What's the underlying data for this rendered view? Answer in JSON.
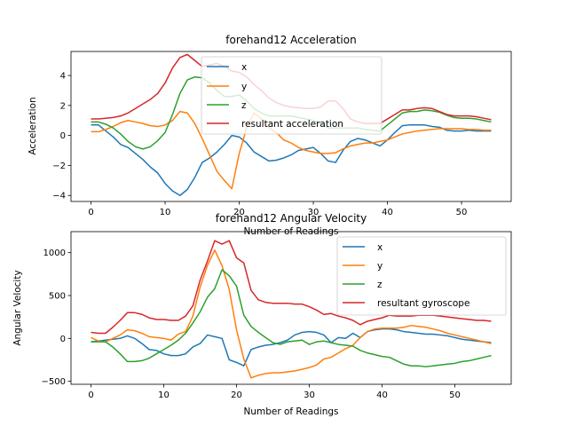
{
  "chart_data": [
    {
      "type": "line",
      "title": "forehand12 Acceleration",
      "xlabel": "Number of Readings",
      "ylabel": "Acceleration",
      "xlim": [
        -2.7,
        56.7
      ],
      "ylim": [
        -4.4,
        5.6
      ],
      "xticks": [
        0,
        10,
        20,
        30,
        40,
        50
      ],
      "yticks": [
        -4,
        -2,
        0,
        2,
        4
      ],
      "legend": "top-center",
      "grid": false,
      "x": [
        0,
        1,
        2,
        3,
        4,
        5,
        6,
        7,
        8,
        9,
        10,
        11,
        12,
        13,
        14,
        15,
        16,
        17,
        18,
        19,
        20,
        21,
        22,
        23,
        24,
        25,
        26,
        27,
        28,
        29,
        30,
        31,
        32,
        33,
        34,
        35,
        36,
        37,
        38,
        39,
        40,
        41,
        42,
        43,
        44,
        45,
        46,
        47,
        48,
        49,
        50,
        51,
        52,
        53,
        54
      ],
      "series": [
        {
          "name": "x",
          "color": "#1f77b4",
          "values": [
            0.7,
            0.7,
            0.3,
            -0.1,
            -0.6,
            -0.8,
            -1.2,
            -1.6,
            -2.1,
            -2.5,
            -3.2,
            -3.7,
            -4.0,
            -3.6,
            -2.8,
            -1.8,
            -1.5,
            -1.1,
            -0.6,
            0.0,
            -0.1,
            -0.5,
            -1.1,
            -1.4,
            -1.7,
            -1.65,
            -1.5,
            -1.3,
            -1.0,
            -0.9,
            -0.8,
            -1.2,
            -1.7,
            -1.8,
            -1.0,
            -0.4,
            -0.2,
            -0.3,
            -0.5,
            -0.7,
            -0.3,
            0.2,
            0.65,
            0.7,
            0.7,
            0.7,
            0.6,
            0.55,
            0.35,
            0.3,
            0.3,
            0.35,
            0.3,
            0.3,
            0.3
          ]
        },
        {
          "name": "y",
          "color": "#ff7f0e",
          "values": [
            0.25,
            0.25,
            0.4,
            0.6,
            0.85,
            1.0,
            0.9,
            0.8,
            0.65,
            0.6,
            0.7,
            1.0,
            1.6,
            1.5,
            0.8,
            -0.2,
            -1.3,
            -2.4,
            -3.0,
            -3.55,
            -1.2,
            0.5,
            1.5,
            1.1,
            0.5,
            0.2,
            -0.3,
            -0.5,
            -0.8,
            -1.0,
            -1.1,
            -1.2,
            -1.2,
            -1.15,
            -0.9,
            -0.7,
            -0.6,
            -0.5,
            -0.5,
            -0.4,
            -0.3,
            -0.1,
            0.1,
            0.2,
            0.3,
            0.35,
            0.4,
            0.45,
            0.45,
            0.45,
            0.45,
            0.4,
            0.4,
            0.35,
            0.35
          ]
        },
        {
          "name": "z",
          "color": "#2ca02c",
          "values": [
            0.9,
            0.9,
            0.75,
            0.5,
            0.1,
            -0.4,
            -0.75,
            -0.9,
            -0.75,
            -0.35,
            0.2,
            1.4,
            2.8,
            3.7,
            3.9,
            3.85,
            3.5,
            3.0,
            2.6,
            2.6,
            2.7,
            2.3,
            1.8,
            1.5,
            1.3,
            1.3,
            1.3,
            1.3,
            1.2,
            1.1,
            1.0,
            0.8,
            0.5,
            0.5,
            0.5,
            0.5,
            0.5,
            0.4,
            0.35,
            0.3,
            0.7,
            1.1,
            1.5,
            1.6,
            1.6,
            1.7,
            1.65,
            1.55,
            1.35,
            1.2,
            1.15,
            1.15,
            1.1,
            1.0,
            0.9
          ]
        },
        {
          "name": "resultant acceleration",
          "color": "#d62728",
          "values": [
            1.1,
            1.1,
            1.15,
            1.2,
            1.3,
            1.5,
            1.8,
            2.1,
            2.4,
            2.8,
            3.5,
            4.5,
            5.2,
            5.4,
            5.0,
            4.6,
            4.7,
            4.8,
            4.6,
            4.3,
            4.2,
            3.9,
            3.4,
            3.0,
            2.5,
            2.2,
            2.0,
            1.9,
            1.85,
            1.8,
            1.8,
            1.9,
            2.3,
            2.3,
            1.8,
            1.1,
            0.9,
            0.8,
            0.8,
            0.8,
            1.1,
            1.4,
            1.7,
            1.7,
            1.8,
            1.85,
            1.8,
            1.6,
            1.4,
            1.3,
            1.3,
            1.3,
            1.25,
            1.15,
            1.05
          ]
        }
      ]
    },
    {
      "type": "line",
      "title": "forehand12 Angular Velocity",
      "xlabel": "Number of Readings",
      "ylabel": "Angular Velocity",
      "xlim": [
        -2.75,
        57.75
      ],
      "ylim": [
        -535,
        1245
      ],
      "xticks": [
        0,
        10,
        20,
        30,
        40,
        50
      ],
      "yticks": [
        -500,
        0,
        500,
        1000
      ],
      "legend": "top-right",
      "grid": false,
      "x": [
        0,
        1,
        2,
        3,
        4,
        5,
        6,
        7,
        8,
        9,
        10,
        11,
        12,
        13,
        14,
        15,
        16,
        17,
        18,
        19,
        20,
        21,
        22,
        23,
        24,
        25,
        26,
        27,
        28,
        29,
        30,
        31,
        32,
        33,
        34,
        35,
        36,
        37,
        38,
        39,
        40,
        41,
        42,
        43,
        44,
        45,
        46,
        47,
        48,
        49,
        50,
        51,
        52,
        53,
        54,
        55
      ],
      "series": [
        {
          "name": "x",
          "color": "#1f77b4",
          "values": [
            -40,
            -30,
            -20,
            -10,
            0,
            30,
            0,
            -60,
            -130,
            -140,
            -180,
            -200,
            -200,
            -180,
            -100,
            -60,
            40,
            20,
            0,
            -250,
            -280,
            -320,
            -130,
            -100,
            -80,
            -70,
            -50,
            -20,
            40,
            70,
            80,
            70,
            40,
            -50,
            10,
            0,
            60,
            10,
            80,
            100,
            110,
            110,
            100,
            80,
            70,
            60,
            50,
            50,
            40,
            30,
            10,
            -10,
            -20,
            -30,
            -40,
            -50
          ]
        },
        {
          "name": "y",
          "color": "#ff7f0e",
          "values": [
            10,
            -30,
            -40,
            0,
            40,
            100,
            90,
            60,
            20,
            10,
            0,
            -20,
            50,
            80,
            260,
            600,
            850,
            1030,
            850,
            570,
            100,
            -240,
            -460,
            -430,
            -410,
            -400,
            -400,
            -390,
            -380,
            -360,
            -340,
            -310,
            -240,
            -220,
            -170,
            -120,
            -80,
            10,
            80,
            110,
            120,
            120,
            120,
            130,
            150,
            140,
            130,
            110,
            90,
            60,
            40,
            20,
            0,
            -20,
            -40,
            -60
          ]
        },
        {
          "name": "z",
          "color": "#2ca02c",
          "values": [
            -40,
            -40,
            -40,
            -100,
            -180,
            -270,
            -270,
            -260,
            -230,
            -180,
            -130,
            -80,
            -20,
            60,
            180,
            310,
            480,
            580,
            800,
            730,
            610,
            270,
            140,
            70,
            10,
            -50,
            -70,
            -40,
            -30,
            -20,
            -70,
            -40,
            -30,
            -50,
            -70,
            -80,
            -90,
            -140,
            -170,
            -190,
            -210,
            -220,
            -260,
            -300,
            -320,
            -320,
            -330,
            -320,
            -310,
            -300,
            -290,
            -270,
            -260,
            -240,
            -220,
            -200
          ]
        },
        {
          "name": "resultant gyroscope",
          "color": "#d62728",
          "values": [
            70,
            60,
            60,
            130,
            210,
            300,
            300,
            280,
            240,
            220,
            220,
            210,
            210,
            260,
            380,
            680,
            900,
            1140,
            1100,
            1140,
            940,
            880,
            560,
            450,
            420,
            410,
            410,
            410,
            400,
            400,
            370,
            330,
            280,
            290,
            260,
            240,
            210,
            160,
            200,
            220,
            240,
            270,
            260,
            260,
            260,
            270,
            270,
            270,
            260,
            250,
            240,
            230,
            220,
            210,
            210,
            200
          ]
        }
      ]
    }
  ]
}
